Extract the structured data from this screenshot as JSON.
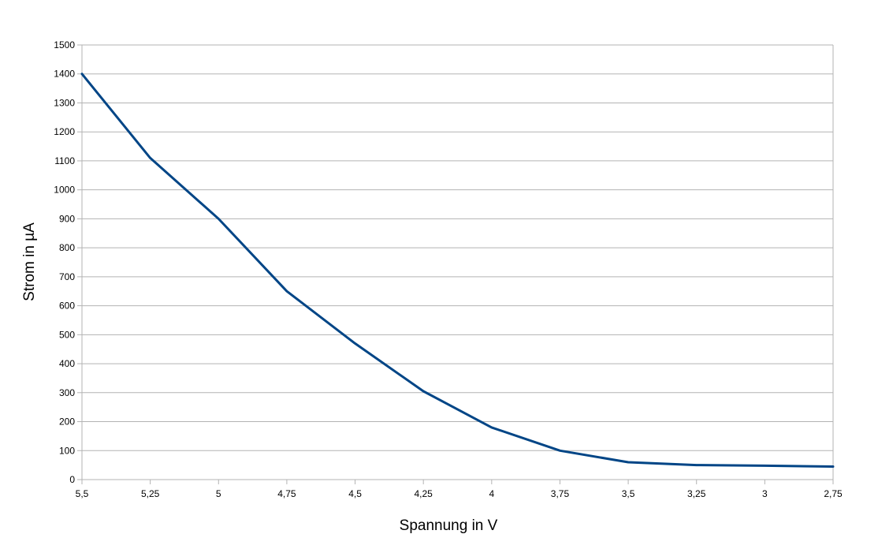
{
  "chart_data": {
    "type": "line",
    "title": "",
    "xlabel": "Spannung in V",
    "ylabel": "Strom in µA",
    "categories": [
      "5,5",
      "5,25",
      "5",
      "4,75",
      "4,5",
      "4,25",
      "4",
      "3,75",
      "3,5",
      "3,25",
      "3",
      "2,75"
    ],
    "x": [
      5.5,
      5.25,
      5.0,
      4.75,
      4.5,
      4.25,
      4.0,
      3.75,
      3.5,
      3.25,
      3.0,
      2.75
    ],
    "series": [
      {
        "values": [
          1400,
          1110,
          900,
          650,
          470,
          305,
          180,
          100,
          60,
          50,
          48,
          45
        ]
      }
    ],
    "ylim": [
      0,
      1500
    ],
    "yticks": [
      0,
      100,
      200,
      300,
      400,
      500,
      600,
      700,
      800,
      900,
      1000,
      1100,
      1200,
      1300,
      1400,
      1500
    ],
    "grid": true,
    "legend": "none",
    "colors": {
      "line": "#004586",
      "grid": "#b3b3b3",
      "axis": "#b3b3b3"
    }
  }
}
